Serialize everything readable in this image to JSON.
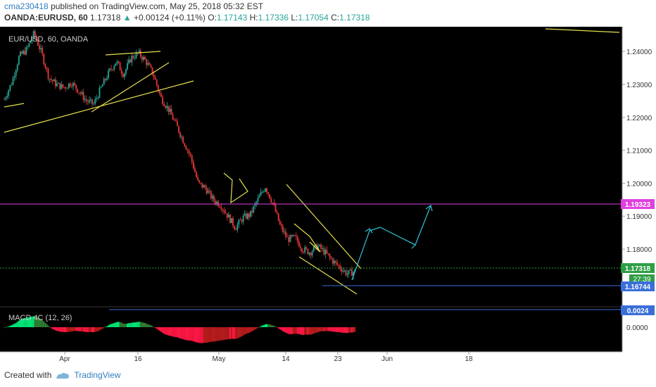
{
  "header": {
    "publisher_line": {
      "user": "cma230418",
      "text": "published on TradingView.com, May 25, 2018 05:32 EST"
    },
    "symbol_line": {
      "symbol": "OANDA:EURUSD, 60",
      "last": "1.17318",
      "arrow": "▲",
      "change": "+0.00124 (+0.11%)",
      "o_label": "O:",
      "o": "1.17143",
      "h_label": "H:",
      "h": "1.17336",
      "l_label": "L:",
      "l": "1.17054",
      "c_label": "C:",
      "c": "1.17318"
    }
  },
  "footer": {
    "created_with": "Created with",
    "brand": "TradingView"
  },
  "colors": {
    "background": "#000000",
    "up_candle": "#26a69a",
    "down_candle": "#e53935",
    "trendline": "#e6e04a",
    "projection": "#2ec4d6",
    "resistance": "#e040e0",
    "support": "#3a6fd8",
    "current": "#2e9e46"
  },
  "chart_data": {
    "type": "candlestick",
    "title": "EUR/USD, 60, OANDA",
    "ylim": [
      1.1625,
      1.2475
    ],
    "y_ticks": [
      "1.24000",
      "1.23000",
      "1.22000",
      "1.21000",
      "1.20000",
      "1.19000",
      "1.18000"
    ],
    "x_ticks": [
      "Apr",
      "16",
      "May",
      "14",
      "23",
      "Jun",
      "18"
    ],
    "price_path": [
      [
        0,
        1.2255
      ],
      [
        1,
        1.2305
      ],
      [
        2,
        1.2385
      ],
      [
        3,
        1.2405
      ],
      [
        4,
        1.2455
      ],
      [
        5,
        1.2395
      ],
      [
        6,
        1.232
      ],
      [
        7,
        1.23
      ],
      [
        8,
        1.229
      ],
      [
        9,
        1.2305
      ],
      [
        10,
        1.228
      ],
      [
        11,
        1.225
      ],
      [
        12,
        1.224
      ],
      [
        13,
        1.229
      ],
      [
        14,
        1.2335
      ],
      [
        15,
        1.237
      ],
      [
        16,
        1.233
      ],
      [
        17,
        1.238
      ],
      [
        18,
        1.2395
      ],
      [
        19,
        1.237
      ],
      [
        20,
        1.233
      ],
      [
        21,
        1.226
      ],
      [
        22,
        1.2225
      ],
      [
        23,
        1.218
      ],
      [
        24,
        1.213
      ],
      [
        25,
        1.208
      ],
      [
        26,
        1.2
      ],
      [
        27,
        1.1985
      ],
      [
        28,
        1.195
      ],
      [
        29,
        1.1935
      ],
      [
        30,
        1.19
      ],
      [
        31,
        1.1865
      ],
      [
        32,
        1.1895
      ],
      [
        33,
        1.1905
      ],
      [
        34,
        1.195
      ],
      [
        35,
        1.199
      ],
      [
        36,
        1.194
      ],
      [
        37,
        1.187
      ],
      [
        38,
        1.183
      ],
      [
        39,
        1.1835
      ],
      [
        40,
        1.18
      ],
      [
        41,
        1.179
      ],
      [
        42,
        1.181
      ],
      [
        43,
        1.179
      ],
      [
        44,
        1.1765
      ],
      [
        45,
        1.1745
      ],
      [
        46,
        1.1725
      ],
      [
        47,
        1.1732
      ]
    ],
    "levels": {
      "resistance": "1.19323",
      "current": "1.17318",
      "support": "1.16744",
      "countdown": "27:39"
    },
    "indicator": {
      "name": "MACD 4C (12, 26)",
      "y_ticks": [
        "0.0000"
      ],
      "level_label": "0.0024"
    },
    "annotations": [
      "ascending trendlines",
      "falling wedge",
      "projected zigzag up-path"
    ]
  }
}
